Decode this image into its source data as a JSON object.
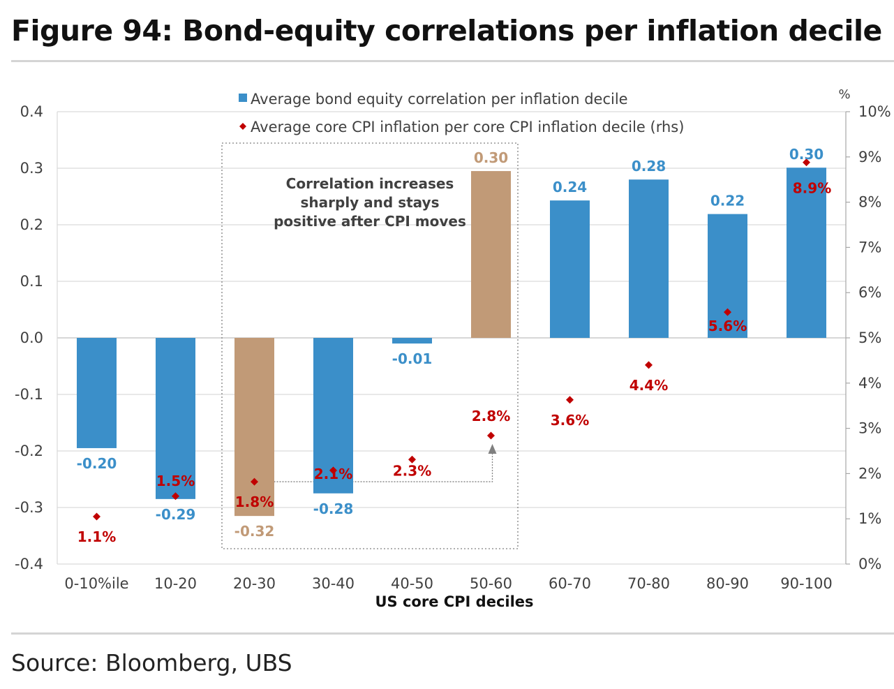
{
  "title": "Figure 94: Bond-equity correlations per inflation decile",
  "source": "Source: Bloomberg, UBS",
  "colors": {
    "bar_blue": "#3b8fc9",
    "bar_highlight": "#c19a77",
    "marker_red": "#c00000",
    "grid": "#d9d9d9",
    "axis_text": "#404040"
  },
  "chart_data": {
    "type": "bar",
    "xlabel": "US core CPI deciles",
    "rhs_unit": "%",
    "categories": [
      "0-10%ile",
      "10-20",
      "20-30",
      "30-40",
      "40-50",
      "50-60",
      "60-70",
      "70-80",
      "80-90",
      "90-100"
    ],
    "y_ticks": [
      "0.4",
      "0.3",
      "0.2",
      "0.1",
      "0.0",
      "-0.1",
      "-0.2",
      "-0.3",
      "-0.4"
    ],
    "y_tick_values": [
      0.4,
      0.3,
      0.2,
      0.1,
      0.0,
      -0.1,
      -0.2,
      -0.3,
      -0.4
    ],
    "ylim": [
      -0.4,
      0.4
    ],
    "y2_ticks": [
      "10%",
      "9%",
      "8%",
      "7%",
      "6%",
      "5%",
      "4%",
      "3%",
      "2%",
      "1%",
      "0%"
    ],
    "y2_tick_values": [
      10,
      9,
      8,
      7,
      6,
      5,
      4,
      3,
      2,
      1,
      0
    ],
    "y2lim": [
      0,
      10
    ],
    "legend_position": "top-center",
    "grid": true,
    "highlighted_categories": [
      "20-30",
      "50-60"
    ],
    "series": [
      {
        "name": "Average bond equity correlation per inflation decile",
        "kind": "bar",
        "axis": "left",
        "values": [
          -0.195,
          -0.285,
          -0.315,
          -0.275,
          -0.01,
          0.295,
          0.243,
          0.28,
          0.219,
          0.301
        ],
        "labels": [
          "-0.20",
          "-0.29",
          "-0.32",
          "-0.28",
          "-0.01",
          "0.30",
          "0.24",
          "0.28",
          "0.22",
          "0.30"
        ]
      },
      {
        "name": "Average core CPI inflation per core CPI inflation decile (rhs)",
        "kind": "scatter",
        "axis": "right",
        "values": [
          1.05,
          1.5,
          1.82,
          2.07,
          2.31,
          2.84,
          3.63,
          4.4,
          5.57,
          8.88
        ],
        "labels": [
          "1.1%",
          "1.5%",
          "1.8%",
          "2.1%",
          "2.3%",
          "2.8%",
          "3.6%",
          "4.4%",
          "5.6%",
          "8.9%"
        ]
      }
    ],
    "annotation": {
      "lines": [
        "Correlation increases",
        "sharply and stays",
        "positive after CPI moves"
      ],
      "box_categories": [
        "20-30",
        "50-60"
      ],
      "arrow_from_category": "20-30",
      "arrow_to_category": "50-60"
    }
  }
}
